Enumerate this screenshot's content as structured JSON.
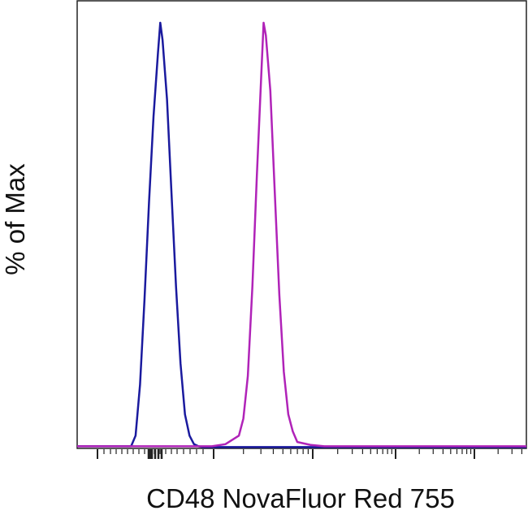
{
  "chart_data": {
    "type": "line",
    "title": "",
    "xlabel": "CD48 NovaFluor Red 755",
    "ylabel": "% of Max",
    "xlim": [
      0,
      100
    ],
    "ylim": [
      0,
      100
    ],
    "x_scale": "biexponential",
    "grid": false,
    "legend": "none",
    "series": [
      {
        "color": "#1a1a9e",
        "x": [
          0,
          12,
          13,
          14,
          15,
          16,
          17,
          18,
          18.5,
          19,
          20,
          21,
          22,
          23,
          24,
          25,
          26,
          27,
          28,
          36,
          100
        ],
        "y": [
          0.5,
          0.5,
          3,
          15,
          35,
          58,
          78,
          93,
          100,
          96,
          82,
          60,
          38,
          20,
          8,
          3,
          1,
          0.5,
          0.3,
          0.3,
          0.3
        ]
      },
      {
        "color": "#b023b8",
        "x": [
          0,
          25,
          30,
          33,
          36,
          37,
          38,
          39,
          40,
          41,
          41.5,
          42,
          43,
          44,
          45,
          46,
          47,
          48,
          49,
          52,
          55,
          100
        ],
        "y": [
          0.5,
          0.5,
          0.5,
          1,
          3,
          7,
          17,
          38,
          64,
          88,
          100,
          97,
          84,
          60,
          36,
          18,
          8,
          4,
          1.5,
          0.8,
          0.5,
          0.5
        ]
      }
    ]
  }
}
